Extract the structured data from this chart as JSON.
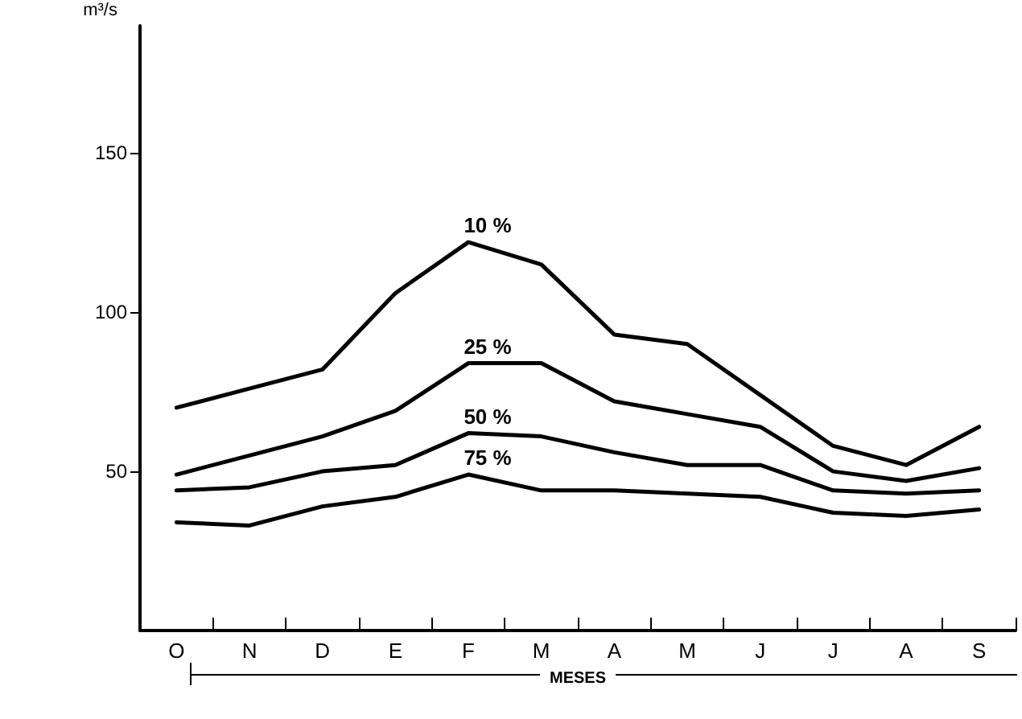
{
  "chart_data": {
    "type": "line",
    "ylabel": "m³/s",
    "xlabel": "MESES",
    "categories": [
      "O",
      "N",
      "D",
      "E",
      "F",
      "M",
      "A",
      "M",
      "J",
      "J",
      "A",
      "S"
    ],
    "series": [
      {
        "name": "10 %",
        "color": "#000000",
        "values": [
          70,
          76,
          82,
          106,
          122,
          115,
          93,
          90,
          74,
          58,
          52,
          64
        ]
      },
      {
        "name": "25 %",
        "color": "#000000",
        "values": [
          49,
          55,
          61,
          69,
          84,
          84,
          72,
          68,
          64,
          50,
          47,
          51
        ]
      },
      {
        "name": "50 %",
        "color": "#000000",
        "values": [
          44,
          45,
          50,
          52,
          62,
          61,
          56,
          52,
          52,
          44,
          43,
          44
        ]
      },
      {
        "name": "75 %",
        "color": "#000000",
        "values": [
          34,
          33,
          39,
          42,
          49,
          44,
          44,
          43,
          42,
          37,
          36,
          38
        ]
      }
    ],
    "ylim": [
      0,
      190
    ],
    "yticks": [
      50,
      100,
      150
    ],
    "grid": false,
    "legend": false,
    "marker": "none",
    "line_style": "solid"
  }
}
